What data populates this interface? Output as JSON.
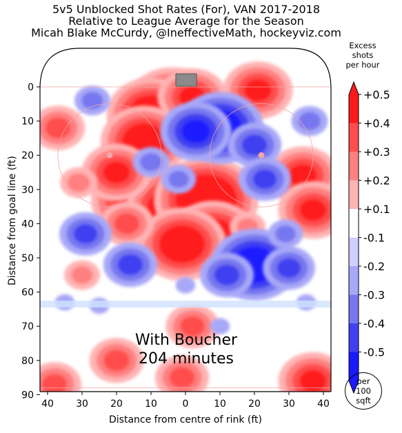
{
  "title": {
    "line1": "5v5 Unblocked Shot Rates (For), VAN 2017-2018",
    "line2": "Relative to League Average for the Season",
    "line3": "Micah Blake McCurdy, @IneffectiveMath, hockeyviz.com"
  },
  "annotation": {
    "line1": "With Boucher",
    "line2": "204 minutes"
  },
  "colorbar": {
    "title_lines": [
      "Excess",
      "shots",
      "per hour"
    ],
    "labels": [
      "+0.5",
      "+0.4",
      "+0.3",
      "+0.2",
      "+0.1",
      "-0.1",
      "-0.2",
      "-0.3",
      "-0.4",
      "-0.5"
    ],
    "colors": [
      "#ff1a1a",
      "#ff4d4d",
      "#ff8080",
      "#ffb3b3",
      "#ffffff",
      "#d0d0ff",
      "#a8a8f8",
      "#7777f0",
      "#4040f0",
      "#1a1aff"
    ]
  },
  "unit_badge": [
    "per",
    "100",
    "sqft"
  ],
  "chart_data": {
    "type": "heatmap",
    "title": "5v5 Unblocked Shot Rates (For), VAN 2017-2018",
    "xlabel": "Distance from centre of rink (ft)",
    "ylabel": "Distance from goal line (ft)",
    "xlim": [
      42,
      -42
    ],
    "ylim": [
      90,
      0
    ],
    "xticks": [
      "40",
      "30",
      "20",
      "10",
      "0",
      "10",
      "20",
      "30",
      "40"
    ],
    "xtick_values": [
      40,
      30,
      20,
      10,
      0,
      -10,
      -20,
      -30,
      -40
    ],
    "yticks": [
      "0",
      "10",
      "20",
      "30",
      "40",
      "50",
      "60",
      "70",
      "80",
      "90"
    ],
    "ytick_values": [
      0,
      10,
      20,
      30,
      40,
      50,
      60,
      70,
      80,
      90
    ],
    "value_range": [
      -0.5,
      0.5
    ],
    "hotspots": [
      {
        "x": 4,
        "y": 5,
        "value": 0.5
      },
      {
        "x": 10,
        "y": 8,
        "value": 0.5
      },
      {
        "x": 12,
        "y": 16,
        "value": 0.45
      },
      {
        "x": -2,
        "y": 3,
        "value": 0.35
      },
      {
        "x": 12,
        "y": 33,
        "value": 0.6
      },
      {
        "x": 2,
        "y": 36,
        "value": 0.6
      },
      {
        "x": -6,
        "y": 33,
        "value": 0.55
      },
      {
        "x": -8,
        "y": 44,
        "value": 0.5
      },
      {
        "x": 1,
        "y": 46,
        "value": 0.5
      },
      {
        "x": 20,
        "y": 25,
        "value": 0.35
      },
      {
        "x": 17,
        "y": 40,
        "value": 0.3
      },
      {
        "x": -19,
        "y": 3,
        "value": 0.3
      },
      {
        "x": -21,
        "y": 1,
        "value": 0.35
      },
      {
        "x": -34,
        "y": 26,
        "value": 0.4
      },
      {
        "x": -37,
        "y": 36,
        "value": 0.35
      },
      {
        "x": 37,
        "y": 12,
        "value": 0.3
      },
      {
        "x": 31,
        "y": 28,
        "value": 0.22
      },
      {
        "x": -18,
        "y": 41,
        "value": 0.18
      },
      {
        "x": -2,
        "y": 70,
        "value": 0.28
      },
      {
        "x": 20,
        "y": 80,
        "value": 0.32
      },
      {
        "x": 1,
        "y": 85,
        "value": 0.3
      },
      {
        "x": -37,
        "y": 86,
        "value": 0.35
      },
      {
        "x": 38,
        "y": 87,
        "value": 0.3
      },
      {
        "x": 30,
        "y": 55,
        "value": 0.18
      },
      {
        "x": -10,
        "y": 12,
        "value": -0.45
      },
      {
        "x": -3,
        "y": 13,
        "value": -0.4
      },
      {
        "x": -20,
        "y": 17,
        "value": -0.3
      },
      {
        "x": -23,
        "y": 27,
        "value": -0.25
      },
      {
        "x": -20,
        "y": 52,
        "value": -0.45
      },
      {
        "x": -12,
        "y": 55,
        "value": -0.3
      },
      {
        "x": 16,
        "y": 52,
        "value": -0.3
      },
      {
        "x": 10,
        "y": 22,
        "value": -0.2
      },
      {
        "x": 29,
        "y": 43,
        "value": -0.25
      },
      {
        "x": -30,
        "y": 53,
        "value": -0.25
      },
      {
        "x": 27,
        "y": 4,
        "value": -0.18
      },
      {
        "x": -36,
        "y": 10,
        "value": -0.2
      },
      {
        "x": -29,
        "y": 43,
        "value": -0.15
      },
      {
        "x": 0,
        "y": 58,
        "value": -0.12
      },
      {
        "x": -10,
        "y": 70,
        "value": -0.12
      },
      {
        "x": 25,
        "y": 64,
        "value": -0.12
      },
      {
        "x": -35,
        "y": 63,
        "value": -0.12
      },
      {
        "x": 35,
        "y": 63,
        "value": -0.12
      },
      {
        "x": 2,
        "y": 27,
        "value": -0.15
      }
    ]
  }
}
